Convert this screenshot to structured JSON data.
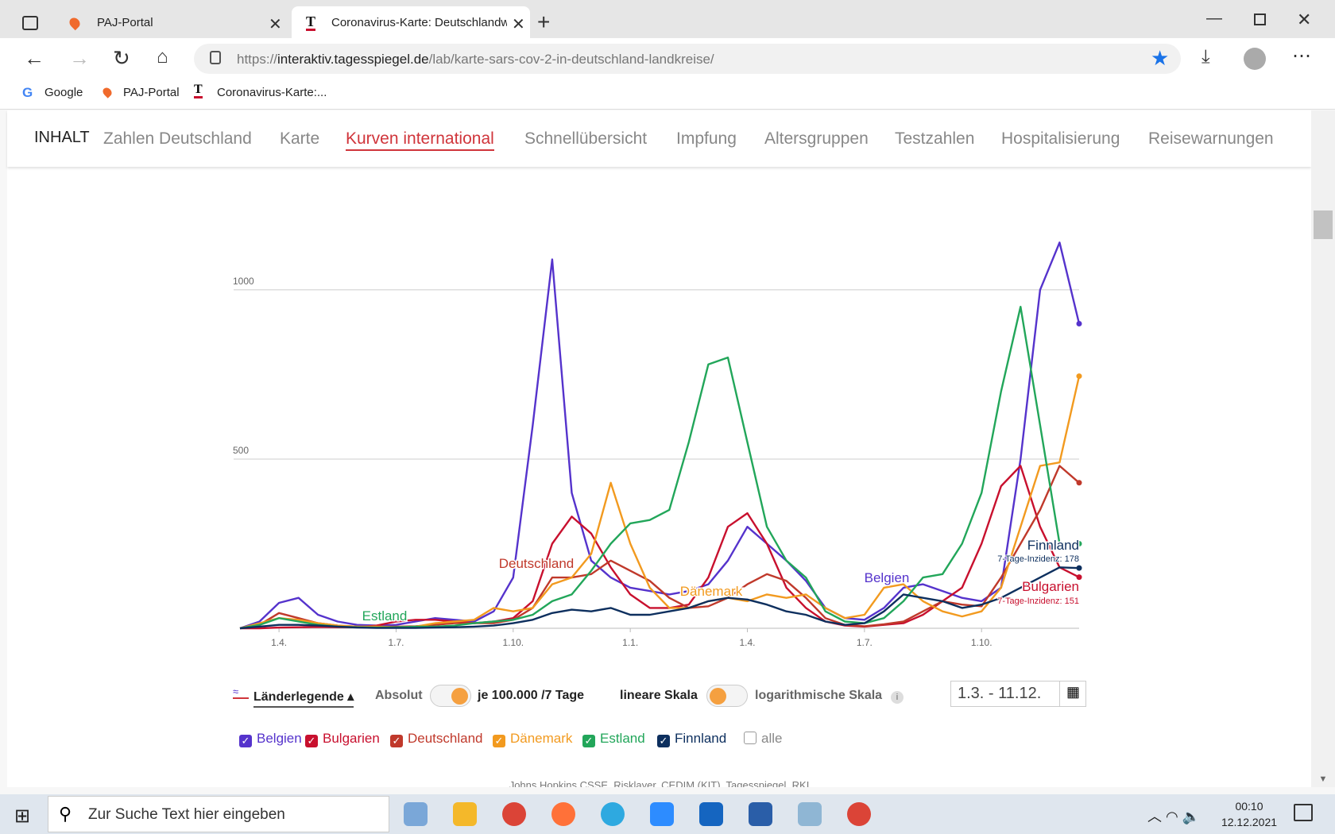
{
  "browser": {
    "tabs": [
      "PAJ-Portal",
      "Coronavirus-Karte: Deutschlandw"
    ],
    "url": {
      "scheme": "https://",
      "host": "interaktiv.tagesspiegel.de",
      "path": "/lab/karte-sars-cov-2-in-deutschland-landkreise/"
    },
    "bookmarks": [
      "Google",
      "PAJ-Portal",
      "Coronavirus-Karte:..."
    ]
  },
  "nav": {
    "label": "INHALT",
    "items": [
      "Zahlen Deutschland",
      "Karte",
      "Kurven international",
      "Schnellübersicht",
      "Impfung",
      "Altersgruppen",
      "Testzahlen",
      "Hospitalisierung",
      "Reisewarnungen"
    ]
  },
  "chart_data": {
    "type": "line",
    "categories": [
      null,
      null,
      "1.4.",
      null,
      null,
      null,
      null,
      null,
      "1.7.",
      null,
      null,
      null,
      null,
      null,
      "1.10.",
      null,
      null,
      null,
      null,
      null,
      "1.1.",
      null,
      null,
      null,
      null,
      null,
      "1.4.",
      null,
      null,
      null,
      null,
      null,
      "1.7.",
      null,
      null,
      null,
      null,
      null,
      "1.10.",
      null,
      null,
      null,
      null,
      null
    ],
    "ylim": [
      0,
      1150
    ],
    "yticks": [
      500,
      1000
    ],
    "grid": true,
    "series": [
      {
        "name": "Belgien",
        "color": "#5533cc",
        "values": [
          0,
          20,
          75,
          90,
          40,
          20,
          10,
          8,
          10,
          20,
          30,
          25,
          20,
          50,
          150,
          600,
          1090,
          400,
          200,
          150,
          120,
          110,
          100,
          110,
          130,
          200,
          300,
          250,
          200,
          140,
          60,
          30,
          25,
          60,
          120,
          130,
          110,
          90,
          80,
          120,
          500,
          1000,
          1140,
          900
        ]
      },
      {
        "name": "Bulgarien",
        "color": "#c8102e",
        "values": [
          0,
          0,
          2,
          3,
          4,
          3,
          3,
          8,
          20,
          25,
          25,
          20,
          15,
          20,
          30,
          80,
          250,
          330,
          280,
          180,
          100,
          60,
          60,
          70,
          150,
          300,
          340,
          250,
          120,
          60,
          20,
          8,
          5,
          10,
          15,
          40,
          80,
          120,
          250,
          420,
          480,
          300,
          180,
          151
        ]
      },
      {
        "name": "Deutschland",
        "color": "#c0392b",
        "values": [
          0,
          10,
          45,
          30,
          15,
          8,
          5,
          5,
          5,
          6,
          10,
          15,
          15,
          15,
          25,
          60,
          150,
          150,
          160,
          200,
          170,
          140,
          90,
          60,
          65,
          90,
          130,
          160,
          140,
          90,
          30,
          10,
          6,
          12,
          20,
          50,
          80,
          70,
          65,
          150,
          250,
          350,
          480,
          430
        ]
      },
      {
        "name": "Dänemark",
        "color": "#f29a1f",
        "values": [
          0,
          15,
          30,
          25,
          15,
          8,
          5,
          5,
          3,
          5,
          15,
          20,
          25,
          60,
          50,
          60,
          130,
          150,
          220,
          430,
          250,
          120,
          60,
          60,
          80,
          90,
          80,
          100,
          90,
          100,
          60,
          30,
          40,
          120,
          130,
          80,
          50,
          35,
          50,
          120,
          300,
          480,
          490,
          745
        ]
      },
      {
        "name": "Estland",
        "color": "#22a65a",
        "values": [
          0,
          10,
          30,
          20,
          10,
          5,
          3,
          2,
          3,
          5,
          5,
          8,
          15,
          20,
          25,
          40,
          80,
          100,
          170,
          250,
          310,
          320,
          350,
          550,
          780,
          800,
          550,
          300,
          200,
          150,
          50,
          20,
          15,
          30,
          80,
          150,
          160,
          250,
          400,
          700,
          950,
          600,
          250,
          250
        ]
      },
      {
        "name": "Finnland",
        "color": "#0d2f5e",
        "values": [
          0,
          5,
          10,
          10,
          8,
          5,
          2,
          1,
          1,
          1,
          2,
          3,
          5,
          8,
          15,
          25,
          45,
          55,
          50,
          60,
          40,
          40,
          50,
          60,
          80,
          90,
          85,
          70,
          50,
          40,
          20,
          10,
          15,
          50,
          100,
          90,
          80,
          60,
          70,
          90,
          120,
          150,
          180,
          178
        ]
      }
    ],
    "annotations": [
      "7-Tage-Inzidenz: 178",
      "7-Tage-Inzidenz: 151"
    ]
  },
  "controls": {
    "legend": "Länderlegende",
    "absolute": "Absolut",
    "relative": "je 100.000 /7 Tage",
    "linear": "lineare Skala",
    "log": "logarithmische Skala",
    "range": "1.3. - 11.12.",
    "all": "alle"
  },
  "source": "Johns Hopkins CSSE, Risklayer, CEDIM (KIT), Tagesspiegel, RKI",
  "taskbar": {
    "search": "Zur Suche Text hier eingeben",
    "time": "00:10",
    "date": "12.12.2021"
  }
}
